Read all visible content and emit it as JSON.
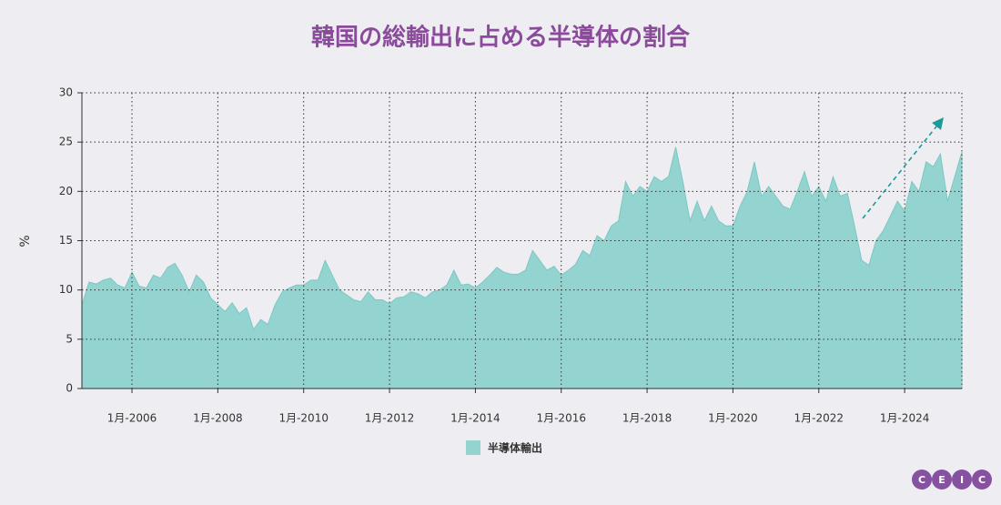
{
  "chart_data": {
    "type": "area",
    "title": "韓国の総輸出に占める半導体の割合",
    "y_label": "%",
    "x": [
      "2004-11",
      "2005-01",
      "2005-03",
      "2005-05",
      "2005-07",
      "2005-09",
      "2005-11",
      "2006-01",
      "2006-03",
      "2006-05",
      "2006-07",
      "2006-09",
      "2006-11",
      "2007-01",
      "2007-03",
      "2007-05",
      "2007-07",
      "2007-09",
      "2007-11",
      "2008-01",
      "2008-03",
      "2008-05",
      "2008-07",
      "2008-09",
      "2008-11",
      "2009-01",
      "2009-03",
      "2009-05",
      "2009-07",
      "2009-09",
      "2009-11",
      "2010-01",
      "2010-03",
      "2010-05",
      "2010-07",
      "2010-09",
      "2010-11",
      "2011-01",
      "2011-03",
      "2011-05",
      "2011-07",
      "2011-09",
      "2011-11",
      "2012-01",
      "2012-03",
      "2012-05",
      "2012-07",
      "2012-09",
      "2012-11",
      "2013-01",
      "2013-03",
      "2013-05",
      "2013-07",
      "2013-09",
      "2013-11",
      "2014-01",
      "2014-03",
      "2014-05",
      "2014-07",
      "2014-09",
      "2014-11",
      "2015-01",
      "2015-03",
      "2015-05",
      "2015-07",
      "2015-09",
      "2015-11",
      "2016-01",
      "2016-03",
      "2016-05",
      "2016-07",
      "2016-09",
      "2016-11",
      "2017-01",
      "2017-03",
      "2017-05",
      "2017-07",
      "2017-09",
      "2017-11",
      "2018-01",
      "2018-03",
      "2018-05",
      "2018-07",
      "2018-09",
      "2018-11",
      "2019-01",
      "2019-03",
      "2019-05",
      "2019-07",
      "2019-09",
      "2019-11",
      "2020-01",
      "2020-03",
      "2020-05",
      "2020-07",
      "2020-09",
      "2020-11",
      "2021-01",
      "2021-03",
      "2021-05",
      "2021-07",
      "2021-09",
      "2021-11",
      "2022-01",
      "2022-03",
      "2022-05",
      "2022-07",
      "2022-09",
      "2022-11",
      "2023-01",
      "2023-03",
      "2023-05",
      "2023-07",
      "2023-09",
      "2023-11",
      "2024-01",
      "2024-03",
      "2024-05",
      "2024-07",
      "2024-09",
      "2024-11",
      "2025-01",
      "2025-03",
      "2025-05"
    ],
    "series": [
      {
        "name": "半導体輸出",
        "color": "#93d3d0",
        "values": [
          8.5,
          10.8,
          10.6,
          11,
          11.2,
          10.5,
          10.2,
          11.8,
          10.4,
          10.2,
          11.5,
          11.2,
          12.3,
          12.7,
          11.5,
          9.8,
          11.5,
          10.8,
          9.2,
          8.5,
          7.8,
          8.7,
          7.6,
          8.2,
          6.0,
          7,
          6.5,
          8.5,
          9.8,
          10.2,
          10.5,
          10.5,
          11,
          11,
          13,
          11.5,
          10,
          9.5,
          9,
          8.8,
          9.8,
          9,
          9,
          8.6,
          9.2,
          9.3,
          9.8,
          9.6,
          9.2,
          9.8,
          10,
          10.5,
          12,
          10.5,
          10.6,
          10.2,
          10.8,
          11.5,
          12.3,
          11.8,
          11.6,
          11.6,
          12,
          14,
          13,
          12,
          12.4,
          11.5,
          12,
          12.6,
          14,
          13.5,
          15.5,
          15,
          16.5,
          17,
          21,
          19.5,
          20.5,
          20,
          21.5,
          21,
          21.5,
          24.5,
          21,
          17,
          19,
          17,
          18.5,
          17,
          16.5,
          16.5,
          18.5,
          20,
          23,
          19.5,
          20.5,
          19.5,
          18.5,
          18.2,
          20,
          22,
          19.5,
          20.5,
          19,
          21.5,
          19.5,
          19.8,
          16.5,
          13,
          12.5,
          15,
          16,
          17.5,
          19,
          18,
          21,
          20,
          23,
          22.5,
          23.8,
          19,
          21.5,
          24
        ]
      }
    ],
    "xlim": [
      "2004-11",
      "2025-05"
    ],
    "xticks": [
      {
        "value": "2006-01",
        "label": "1月-2006"
      },
      {
        "value": "2008-01",
        "label": "1月-2008"
      },
      {
        "value": "2010-01",
        "label": "1月-2010"
      },
      {
        "value": "2012-01",
        "label": "1月-2012"
      },
      {
        "value": "2014-01",
        "label": "1月-2014"
      },
      {
        "value": "2016-01",
        "label": "1月-2016"
      },
      {
        "value": "2018-01",
        "label": "1月-2018"
      },
      {
        "value": "2020-01",
        "label": "1月-2020"
      },
      {
        "value": "2022-01",
        "label": "1月-2022"
      },
      {
        "value": "2024-01",
        "label": "1月-2024"
      }
    ],
    "ylim": [
      0,
      30
    ],
    "yticks": [
      0,
      5,
      10,
      15,
      20,
      25,
      30
    ],
    "grid": true,
    "legend": "bottom",
    "logo_letters": [
      "C",
      "E",
      "I",
      "C"
    ]
  }
}
